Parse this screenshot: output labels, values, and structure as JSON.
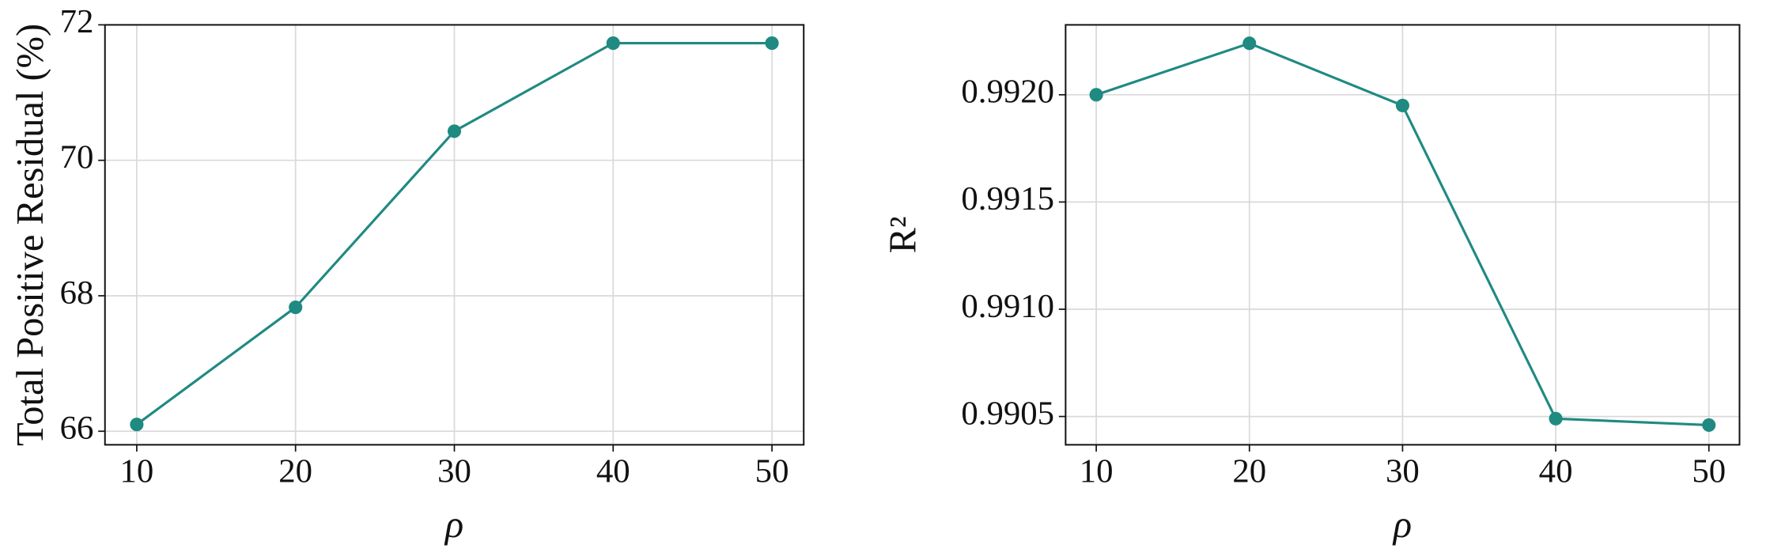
{
  "chart_data": [
    {
      "type": "line",
      "x_label": "ρ",
      "y_label": "Total Positive Residual (%)",
      "x": [
        10,
        20,
        30,
        40,
        50
      ],
      "series": [
        {
          "color": "#1f8a82",
          "values": [
            66.1,
            67.83,
            70.43,
            71.73,
            71.73
          ]
        }
      ],
      "xlim": [
        8,
        52
      ],
      "xticks": [
        10,
        20,
        30,
        40,
        50
      ],
      "ylim": [
        65.8,
        72.0
      ],
      "yticks": [
        66,
        68,
        70,
        72
      ],
      "grid": true,
      "markers": true
    },
    {
      "type": "line",
      "x_label": "ρ",
      "y_label": "R²",
      "x": [
        10,
        20,
        30,
        40,
        50
      ],
      "series": [
        {
          "color": "#1f8a82",
          "values": [
            0.992,
            0.99224,
            0.99195,
            0.99049,
            0.99046
          ]
        }
      ],
      "xlim": [
        8,
        52
      ],
      "xticks": [
        10,
        20,
        30,
        40,
        50
      ],
      "ylim": [
        0.990368,
        0.992326
      ],
      "yticks": [
        {
          "value": 0.9905,
          "label": "0.9905"
        },
        {
          "value": 0.991,
          "label": "0.9910"
        },
        {
          "value": 0.9915,
          "label": "0.9915"
        },
        {
          "value": 0.992,
          "label": "0.9920"
        }
      ],
      "grid": true,
      "markers": true
    }
  ]
}
